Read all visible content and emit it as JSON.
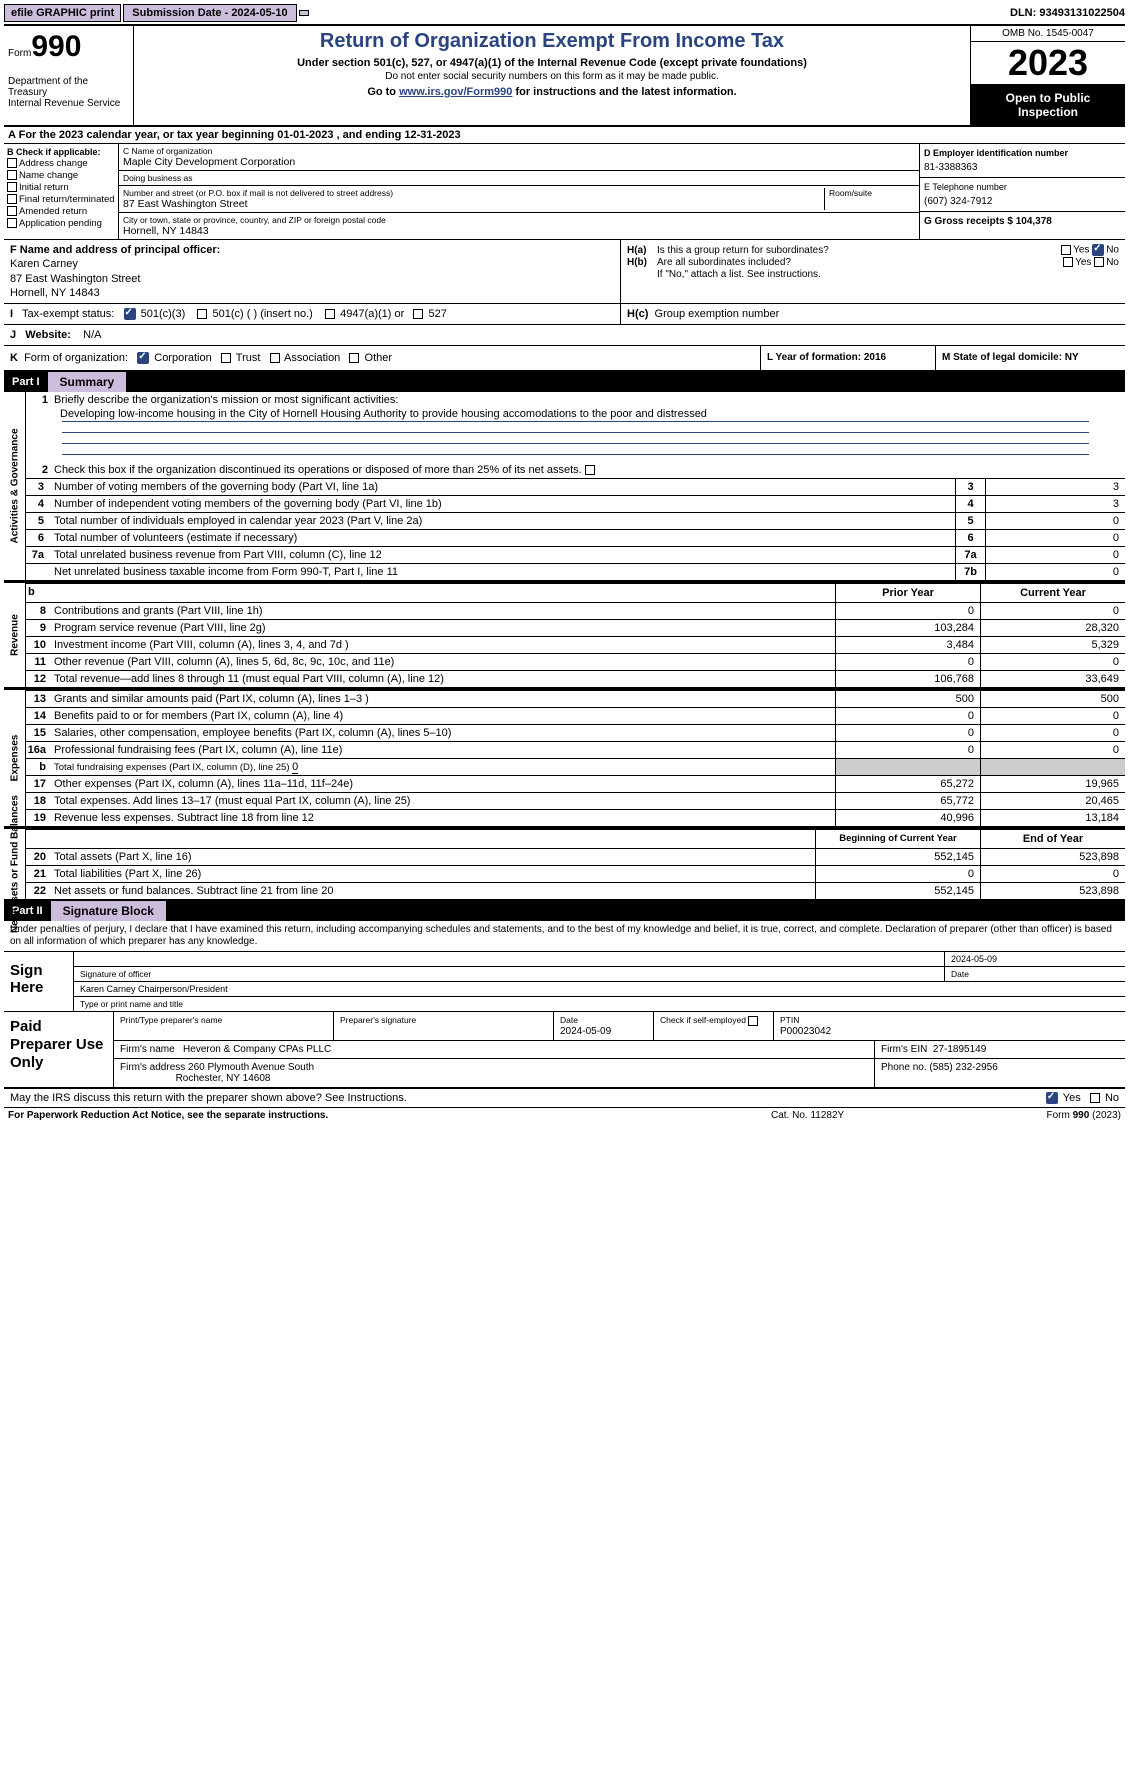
{
  "topbar": {
    "efile": "efile GRAPHIC print",
    "submission_label": "Submission Date - 2024-05-10",
    "dln_label": "DLN: 93493131022504"
  },
  "header": {
    "form_prefix": "Form",
    "form_num": "990",
    "dept1": "Department of the Treasury",
    "dept2": "Internal Revenue Service",
    "title": "Return of Organization Exempt From Income Tax",
    "subtitle": "Under section 501(c), 527, or 4947(a)(1) of the Internal Revenue Code (except private foundations)",
    "note": "Do not enter social security numbers on this form as it may be made public.",
    "goto_pre": "Go to ",
    "goto_link": "www.irs.gov/Form990",
    "goto_post": " for instructions and the latest information.",
    "omb": "OMB No. 1545-0047",
    "year": "2023",
    "open": "Open to Public Inspection"
  },
  "line_a": "For the 2023 calendar year, or tax year beginning 01-01-2023   , and ending 12-31-2023",
  "col_b": {
    "header": "B Check if applicable:",
    "opts": [
      "Address change",
      "Name change",
      "Initial return",
      "Final return/terminated",
      "Amended return",
      "Application pending"
    ]
  },
  "col_c": {
    "name_lbl": "C Name of organization",
    "name": "Maple City Development Corporation",
    "dba_lbl": "Doing business as",
    "dba": "",
    "addr_lbl": "Number and street (or P.O. box if mail is not delivered to street address)",
    "addr": "87 East Washington Street",
    "room_lbl": "Room/suite",
    "room": "",
    "city_lbl": "City or town, state or province, country, and ZIP or foreign postal code",
    "city": "Hornell, NY  14843"
  },
  "col_d": {
    "ein_lbl": "D Employer identification number",
    "ein": "81-3388363",
    "tel_lbl": "E Telephone number",
    "tel": "(607) 324-7912",
    "gross_lbl": "G Gross receipts $ 104,378"
  },
  "row_f": {
    "lbl": "F  Name and address of principal officer:",
    "name": "Karen Carney",
    "addr1": "87 East Washington Street",
    "addr2": "Hornell, NY  14843"
  },
  "row_h": {
    "ha_lbl": "H(a)",
    "ha_txt": "Is this a group return for subordinates?",
    "hb_lbl": "H(b)",
    "hb_txt": "Are all subordinates included?",
    "hb_note": "If \"No,\" attach a list. See instructions.",
    "hc_lbl": "H(c)",
    "hc_txt": "Group exemption number",
    "yes": "Yes",
    "no": "No"
  },
  "row_i": {
    "lbl": "I",
    "txt": "Tax-exempt status:",
    "o1": "501(c)(3)",
    "o2": "501(c) (  ) (insert no.)",
    "o3": "4947(a)(1) or",
    "o4": "527"
  },
  "row_j": {
    "lbl": "J",
    "txt": "Website:",
    "val": "N/A"
  },
  "row_k": {
    "lbl": "K",
    "txt": "Form of organization:",
    "o1": "Corporation",
    "o2": "Trust",
    "o3": "Association",
    "o4": "Other"
  },
  "row_l": "L Year of formation: 2016",
  "row_m": "M State of legal domicile: NY",
  "parts": {
    "p1": "Part I",
    "p1t": "Summary",
    "p2": "Part II",
    "p2t": "Signature Block"
  },
  "vlabels": {
    "ag": "Activities & Governance",
    "rev": "Revenue",
    "exp": "Expenses",
    "na": "Net Assets or Fund Balances"
  },
  "summary": {
    "l1": "Briefly describe the organization's mission or most significant activities:",
    "mission": "Developing low-income housing in the City of Hornell Housing Authority to provide housing accomodations to the poor and distressed",
    "l2": "Check this box      if the organization discontinued its operations or disposed of more than 25% of its net assets.",
    "l3": "Number of voting members of the governing body (Part VI, line 1a)",
    "l4": "Number of independent voting members of the governing body (Part VI, line 1b)",
    "l5": "Total number of individuals employed in calendar year 2023 (Part V, line 2a)",
    "l6": "Total number of volunteers (estimate if necessary)",
    "l7a": "Total unrelated business revenue from Part VIII, column (C), line 12",
    "l7b": "Net unrelated business taxable income from Form 990-T, Part I, line 11",
    "v3": "3",
    "v4": "3",
    "v5": "0",
    "v6": "0",
    "v7a": "0",
    "v7b": "0"
  },
  "rev": {
    "hdr_b": "b",
    "hdr_py": "Prior Year",
    "hdr_cy": "Current Year",
    "rows": [
      {
        "n": "8",
        "t": "Contributions and grants (Part VIII, line 1h)",
        "p": "0",
        "c": "0"
      },
      {
        "n": "9",
        "t": "Program service revenue (Part VIII, line 2g)",
        "p": "103,284",
        "c": "28,320"
      },
      {
        "n": "10",
        "t": "Investment income (Part VIII, column (A), lines 3, 4, and 7d )",
        "p": "3,484",
        "c": "5,329"
      },
      {
        "n": "11",
        "t": "Other revenue (Part VIII, column (A), lines 5, 6d, 8c, 9c, 10c, and 11e)",
        "p": "0",
        "c": "0"
      },
      {
        "n": "12",
        "t": "Total revenue—add lines 8 through 11 (must equal Part VIII, column (A), line 12)",
        "p": "106,768",
        "c": "33,649"
      }
    ]
  },
  "exp": {
    "rows": [
      {
        "n": "13",
        "t": "Grants and similar amounts paid (Part IX, column (A), lines 1–3 )",
        "p": "500",
        "c": "500"
      },
      {
        "n": "14",
        "t": "Benefits paid to or for members (Part IX, column (A), line 4)",
        "p": "0",
        "c": "0"
      },
      {
        "n": "15",
        "t": "Salaries, other compensation, employee benefits (Part IX, column (A), lines 5–10)",
        "p": "0",
        "c": "0"
      },
      {
        "n": "16a",
        "t": "Professional fundraising fees (Part IX, column (A), line 11e)",
        "p": "0",
        "c": "0"
      }
    ],
    "l16b_n": "b",
    "l16b": "Total fundraising expenses (Part IX, column (D), line 25) ",
    "l16b_v": "0",
    "rows2": [
      {
        "n": "17",
        "t": "Other expenses (Part IX, column (A), lines 11a–11d, 11f–24e)",
        "p": "65,272",
        "c": "19,965"
      },
      {
        "n": "18",
        "t": "Total expenses. Add lines 13–17 (must equal Part IX, column (A), line 25)",
        "p": "65,772",
        "c": "20,465"
      },
      {
        "n": "19",
        "t": "Revenue less expenses. Subtract line 18 from line 12",
        "p": "40,996",
        "c": "13,184"
      }
    ]
  },
  "na": {
    "hdr_b": "Beginning of Current Year",
    "hdr_e": "End of Year",
    "rows": [
      {
        "n": "20",
        "t": "Total assets (Part X, line 16)",
        "p": "552,145",
        "c": "523,898"
      },
      {
        "n": "21",
        "t": "Total liabilities (Part X, line 26)",
        "p": "0",
        "c": "0"
      },
      {
        "n": "22",
        "t": "Net assets or fund balances. Subtract line 21 from line 20",
        "p": "552,145",
        "c": "523,898"
      }
    ]
  },
  "perjury": "Under penalties of perjury, I declare that I have examined this return, including accompanying schedules and statements, and to the best of my knowledge and belief, it is true, correct, and complete. Declaration of preparer (other than officer) is based on all information of which preparer has any knowledge.",
  "sign": {
    "label": "Sign Here",
    "date": "2024-05-09",
    "sigoff": "Signature of officer",
    "datel": "Date",
    "name": "Karen Carney Chairperson/President",
    "type": "Type or print name and title"
  },
  "paid": {
    "label": "Paid Preparer Use Only",
    "h1": "Print/Type preparer's name",
    "h2": "Preparer's signature",
    "h3_l": "Date",
    "h3_v": "2024-05-09",
    "h4": "Check         if self-employed",
    "h5_l": "PTIN",
    "h5_v": "P00023042",
    "firm_l": "Firm's name",
    "firm_v": "Heveron & Company CPAs PLLC",
    "ein_l": "Firm's EIN",
    "ein_v": "27-1895149",
    "addr_l": "Firm's address",
    "addr_v1": "260 Plymouth Avenue South",
    "addr_v2": "Rochester, NY  14608",
    "ph_l": "Phone no.",
    "ph_v": "(585) 232-2956"
  },
  "discuss": {
    "txt": "May the IRS discuss this return with the preparer shown above? See Instructions.",
    "yes": "Yes",
    "no": "No"
  },
  "footer": {
    "l": "For Paperwork Reduction Act Notice, see the separate instructions.",
    "m": "Cat. No. 11282Y",
    "r_pre": "Form ",
    "r_b": "990",
    "r_post": " (2023)"
  },
  "colors": {
    "accent": "#2a4480",
    "lavender": "#cdbddc",
    "grey": "#cccccc"
  }
}
